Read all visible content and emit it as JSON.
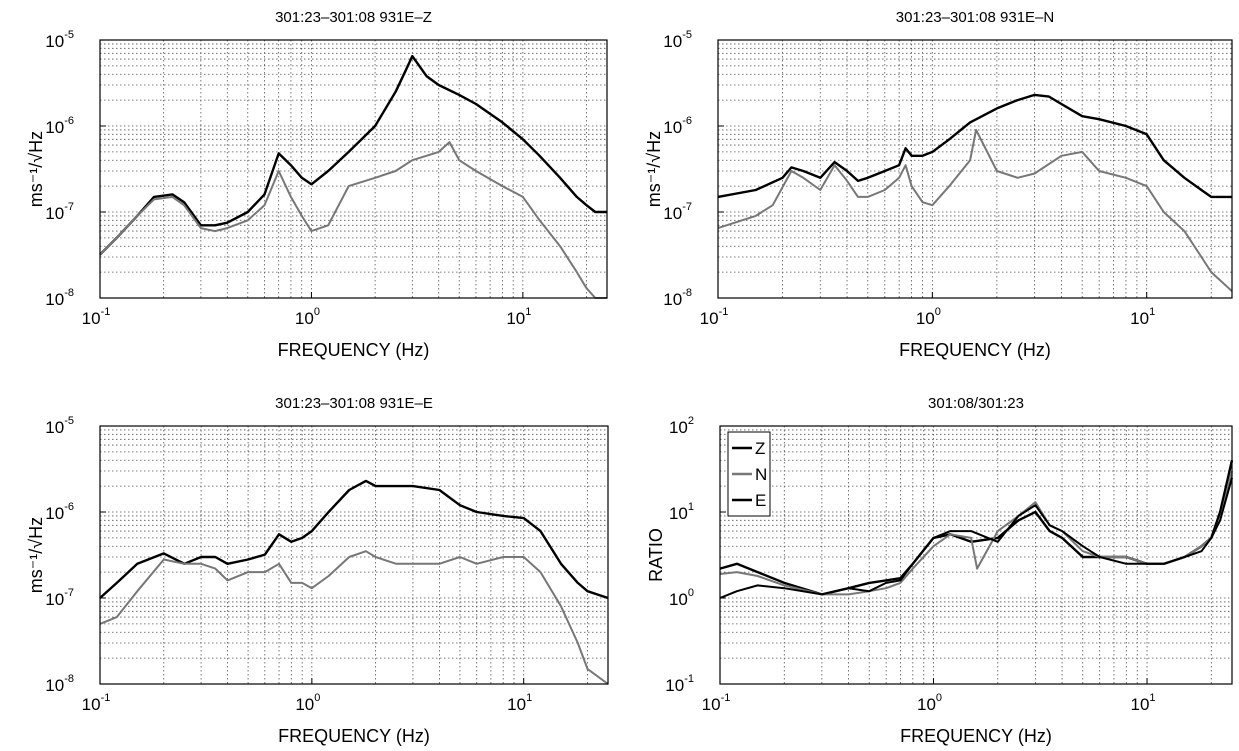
{
  "chart_data": [
    {
      "type": "line",
      "title": "301:23–301:08  931E–Z",
      "xlabel": "FREQUENCY (Hz)",
      "ylabel": "ms⁻¹/√Hz",
      "xscale": "log",
      "yscale": "log",
      "xlim": [
        0.1,
        25
      ],
      "ylim": [
        1e-08,
        1e-05
      ],
      "x_ticks": [
        {
          "base": "10",
          "exp": "-1"
        },
        {
          "base": "10",
          "exp": "0"
        },
        {
          "base": "10",
          "exp": "1"
        }
      ],
      "y_ticks": [
        {
          "base": "10",
          "exp": "-8"
        },
        {
          "base": "10",
          "exp": "-7"
        },
        {
          "base": "10",
          "exp": "-6"
        },
        {
          "base": "10",
          "exp": "-5"
        }
      ],
      "grid": true,
      "series": [
        {
          "color": "#000000",
          "x": [
            0.1,
            0.12,
            0.15,
            0.18,
            0.22,
            0.25,
            0.3,
            0.35,
            0.4,
            0.5,
            0.6,
            0.7,
            0.8,
            0.9,
            1.0,
            1.2,
            1.5,
            2.0,
            2.5,
            2.8,
            3.0,
            3.5,
            4.0,
            5.0,
            6.0,
            8.0,
            10.0,
            12.0,
            15.0,
            18.0,
            20.0,
            22.0,
            25.0
          ],
          "y": [
            3.2e-08,
            5e-08,
            9e-08,
            1.5e-07,
            1.6e-07,
            1.3e-07,
            7e-08,
            7e-08,
            7.5e-08,
            1e-07,
            1.6e-07,
            4.8e-07,
            3.5e-07,
            2.5e-07,
            2.1e-07,
            3e-07,
            5e-07,
            1e-06,
            2.5e-06,
            4.5e-06,
            6.5e-06,
            3.8e-06,
            3e-06,
            2.3e-06,
            1.8e-06,
            1.1e-06,
            7e-07,
            4.5e-07,
            2.5e-07,
            1.5e-07,
            1.2e-07,
            1e-07,
            1e-07
          ]
        },
        {
          "color": "#777777",
          "x": [
            0.1,
            0.12,
            0.15,
            0.18,
            0.22,
            0.25,
            0.3,
            0.35,
            0.4,
            0.5,
            0.6,
            0.7,
            0.8,
            0.9,
            1.0,
            1.2,
            1.5,
            2.0,
            2.5,
            3.0,
            3.5,
            4.0,
            4.5,
            5.0,
            6.0,
            8.0,
            10.0,
            12.0,
            15.0,
            18.0,
            20.0,
            22.0,
            25.0
          ],
          "y": [
            3.2e-08,
            5e-08,
            9e-08,
            1.4e-07,
            1.5e-07,
            1.2e-07,
            6.5e-08,
            6e-08,
            6.5e-08,
            8e-08,
            1.2e-07,
            3e-07,
            1.5e-07,
            9e-08,
            6e-08,
            7e-08,
            2e-07,
            2.5e-07,
            3e-07,
            4e-07,
            4.5e-07,
            5e-07,
            6.5e-07,
            4e-07,
            3e-07,
            2e-07,
            1.5e-07,
            8e-08,
            4e-08,
            2e-08,
            1.3e-08,
            1e-08,
            1e-08
          ]
        }
      ]
    },
    {
      "type": "line",
      "title": "301:23–301:08  931E–N",
      "xlabel": "FREQUENCY (Hz)",
      "ylabel": "ms⁻¹/√Hz",
      "xscale": "log",
      "yscale": "log",
      "xlim": [
        0.1,
        25
      ],
      "ylim": [
        1e-08,
        1e-05
      ],
      "x_ticks": [
        {
          "base": "10",
          "exp": "-1"
        },
        {
          "base": "10",
          "exp": "0"
        },
        {
          "base": "10",
          "exp": "1"
        }
      ],
      "y_ticks": [
        {
          "base": "10",
          "exp": "-8"
        },
        {
          "base": "10",
          "exp": "-7"
        },
        {
          "base": "10",
          "exp": "-6"
        },
        {
          "base": "10",
          "exp": "-5"
        }
      ],
      "grid": true,
      "series": [
        {
          "color": "#000000",
          "x": [
            0.1,
            0.15,
            0.2,
            0.22,
            0.25,
            0.3,
            0.35,
            0.4,
            0.45,
            0.5,
            0.6,
            0.7,
            0.75,
            0.8,
            0.9,
            1.0,
            1.2,
            1.5,
            2.0,
            2.5,
            3.0,
            3.5,
            4.0,
            5.0,
            6.0,
            8.0,
            10.0,
            12.0,
            15.0,
            18.0,
            20.0,
            25.0
          ],
          "y": [
            1.5e-07,
            1.8e-07,
            2.5e-07,
            3.3e-07,
            3e-07,
            2.5e-07,
            3.8e-07,
            3e-07,
            2.3e-07,
            2.5e-07,
            3e-07,
            3.5e-07,
            5.5e-07,
            4.5e-07,
            4.5e-07,
            5e-07,
            7e-07,
            1.1e-06,
            1.6e-06,
            2e-06,
            2.3e-06,
            2.2e-06,
            1.8e-06,
            1.3e-06,
            1.2e-06,
            1e-06,
            8e-07,
            4e-07,
            2.5e-07,
            1.8e-07,
            1.5e-07,
            1.5e-07
          ]
        },
        {
          "color": "#777777",
          "x": [
            0.1,
            0.15,
            0.18,
            0.22,
            0.25,
            0.3,
            0.35,
            0.4,
            0.45,
            0.5,
            0.6,
            0.7,
            0.75,
            0.8,
            0.9,
            1.0,
            1.2,
            1.5,
            1.6,
            2.0,
            2.5,
            3.0,
            4.0,
            5.0,
            6.0,
            8.0,
            10.0,
            12.0,
            15.0,
            18.0,
            20.0,
            25.0
          ],
          "y": [
            6.5e-08,
            9e-08,
            1.2e-07,
            3e-07,
            2.5e-07,
            1.8e-07,
            3.5e-07,
            2.3e-07,
            1.5e-07,
            1.5e-07,
            1.8e-07,
            2.5e-07,
            3.5e-07,
            2e-07,
            1.3e-07,
            1.2e-07,
            2e-07,
            4e-07,
            9e-07,
            3e-07,
            2.5e-07,
            2.8e-07,
            4.5e-07,
            5e-07,
            3e-07,
            2.5e-07,
            2e-07,
            1e-07,
            6e-08,
            3e-08,
            2e-08,
            1.2e-08
          ]
        }
      ]
    },
    {
      "type": "line",
      "title": "301:23–301:08  931E–E",
      "xlabel": "FREQUENCY (Hz)",
      "ylabel": "ms⁻¹/√Hz",
      "xscale": "log",
      "yscale": "log",
      "xlim": [
        0.1,
        25
      ],
      "ylim": [
        1e-08,
        1e-05
      ],
      "x_ticks": [
        {
          "base": "10",
          "exp": "-1"
        },
        {
          "base": "10",
          "exp": "0"
        },
        {
          "base": "10",
          "exp": "1"
        }
      ],
      "y_ticks": [
        {
          "base": "10",
          "exp": "-8"
        },
        {
          "base": "10",
          "exp": "-7"
        },
        {
          "base": "10",
          "exp": "-6"
        },
        {
          "base": "10",
          "exp": "-5"
        }
      ],
      "grid": true,
      "series": [
        {
          "color": "#000000",
          "x": [
            0.1,
            0.12,
            0.15,
            0.2,
            0.25,
            0.3,
            0.35,
            0.4,
            0.5,
            0.6,
            0.7,
            0.8,
            0.9,
            1.0,
            1.2,
            1.5,
            1.8,
            2.0,
            2.5,
            3.0,
            4.0,
            5.0,
            6.0,
            8.0,
            10.0,
            12.0,
            15.0,
            18.0,
            20.0,
            25.0
          ],
          "y": [
            1e-07,
            1.5e-07,
            2.5e-07,
            3.3e-07,
            2.5e-07,
            3e-07,
            3e-07,
            2.5e-07,
            2.8e-07,
            3.2e-07,
            5.5e-07,
            4.5e-07,
            5e-07,
            6e-07,
            1e-06,
            1.8e-06,
            2.3e-06,
            2e-06,
            2e-06,
            2e-06,
            1.8e-06,
            1.2e-06,
            1e-06,
            9e-07,
            8.5e-07,
            6e-07,
            2.5e-07,
            1.5e-07,
            1.2e-07,
            1e-07
          ]
        },
        {
          "color": "#777777",
          "x": [
            0.1,
            0.12,
            0.15,
            0.2,
            0.25,
            0.3,
            0.35,
            0.4,
            0.5,
            0.6,
            0.7,
            0.8,
            0.9,
            1.0,
            1.2,
            1.5,
            1.8,
            2.0,
            2.5,
            3.0,
            4.0,
            5.0,
            6.0,
            8.0,
            10.0,
            12.0,
            15.0,
            18.0,
            20.0,
            25.0
          ],
          "y": [
            5e-08,
            6e-08,
            1.2e-07,
            2.8e-07,
            2.5e-07,
            2.5e-07,
            2.2e-07,
            1.6e-07,
            2e-07,
            2e-07,
            2.5e-07,
            1.5e-07,
            1.5e-07,
            1.3e-07,
            1.8e-07,
            3e-07,
            3.5e-07,
            3e-07,
            2.5e-07,
            2.5e-07,
            2.5e-07,
            3e-07,
            2.5e-07,
            3e-07,
            3e-07,
            2e-07,
            8e-08,
            3e-08,
            1.5e-08,
            1e-08
          ]
        }
      ]
    },
    {
      "type": "line",
      "title": "301:08/301:23",
      "xlabel": "FREQUENCY (Hz)",
      "ylabel": "RATIO",
      "xscale": "log",
      "yscale": "log",
      "xlim": [
        0.1,
        25
      ],
      "ylim": [
        0.1,
        100
      ],
      "x_ticks": [
        {
          "base": "10",
          "exp": "-1"
        },
        {
          "base": "10",
          "exp": "0"
        },
        {
          "base": "10",
          "exp": "1"
        }
      ],
      "y_ticks": [
        {
          "base": "10",
          "exp": "-1"
        },
        {
          "base": "10",
          "exp": "0"
        },
        {
          "base": "10",
          "exp": "1"
        },
        {
          "base": "10",
          "exp": "2"
        }
      ],
      "grid": true,
      "legend_position": "top-left",
      "series": [
        {
          "name": "Z",
          "color": "#000000",
          "x": [
            0.1,
            0.12,
            0.15,
            0.2,
            0.3,
            0.4,
            0.5,
            0.6,
            0.7,
            0.8,
            1.0,
            1.2,
            1.5,
            2.0,
            2.5,
            3.0,
            3.5,
            4.0,
            5.0,
            6.0,
            8.0,
            10.0,
            12.0,
            15.0,
            18.0,
            20.0,
            22.0,
            25.0
          ],
          "y": [
            2.2,
            2.5,
            2.0,
            1.5,
            1.1,
            1.3,
            1.5,
            1.6,
            1.7,
            2.5,
            5.0,
            5.5,
            4.5,
            5.0,
            8.0,
            10.0,
            6.0,
            5.0,
            3.0,
            3.0,
            3.0,
            2.5,
            2.5,
            3.0,
            4.0,
            5.0,
            10.0,
            40.0
          ]
        },
        {
          "name": "N",
          "color": "#777777",
          "x": [
            0.1,
            0.12,
            0.15,
            0.2,
            0.3,
            0.4,
            0.5,
            0.6,
            0.7,
            0.8,
            1.0,
            1.2,
            1.5,
            1.6,
            2.0,
            2.5,
            3.0,
            3.5,
            4.0,
            5.0,
            6.0,
            8.0,
            10.0,
            12.0,
            15.0,
            18.0,
            20.0,
            22.0,
            25.0
          ],
          "y": [
            1.9,
            2.0,
            1.8,
            1.4,
            1.1,
            1.1,
            1.2,
            1.3,
            1.5,
            2.2,
            4.0,
            5.5,
            5.0,
            2.2,
            6.0,
            9.0,
            13.0,
            7.0,
            6.0,
            3.5,
            3.0,
            3.0,
            2.5,
            2.5,
            3.0,
            4.0,
            5.0,
            8.0,
            30.0
          ]
        },
        {
          "name": "E",
          "color": "#000000",
          "x": [
            0.1,
            0.12,
            0.15,
            0.2,
            0.3,
            0.4,
            0.5,
            0.6,
            0.7,
            0.8,
            1.0,
            1.2,
            1.5,
            1.8,
            2.0,
            2.5,
            3.0,
            3.5,
            4.0,
            5.0,
            6.0,
            8.0,
            10.0,
            12.0,
            15.0,
            18.0,
            20.0,
            22.0,
            25.0
          ],
          "y": [
            1.0,
            1.2,
            1.4,
            1.3,
            1.1,
            1.3,
            1.2,
            1.5,
            1.6,
            2.5,
            5.0,
            6.0,
            6.0,
            5.0,
            4.5,
            9.0,
            12.0,
            7.0,
            6.0,
            4.0,
            3.0,
            2.5,
            2.5,
            2.5,
            3.0,
            3.5,
            5.0,
            8.0,
            25.0
          ]
        }
      ]
    }
  ]
}
